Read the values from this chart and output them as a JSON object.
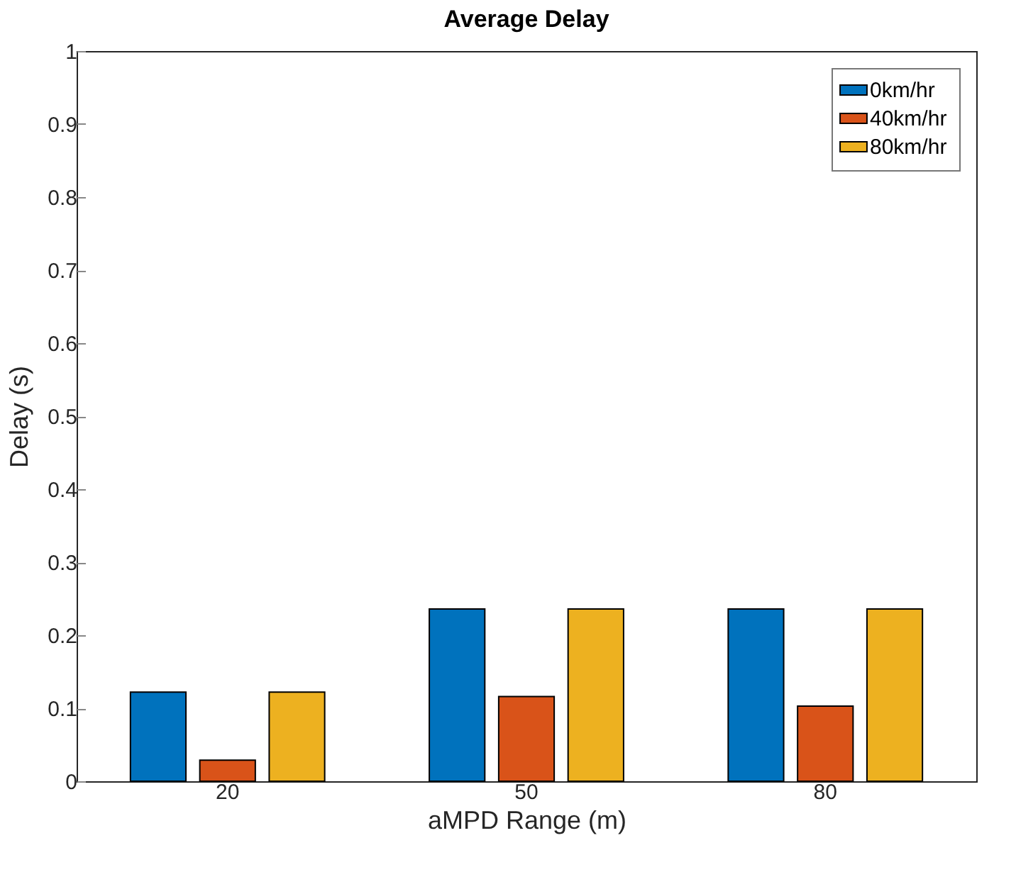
{
  "chart_data": {
    "type": "bar",
    "title": "Average Delay",
    "xlabel": "aMPD Range (m)",
    "ylabel": "Delay (s)",
    "categories": [
      "20",
      "50",
      "80"
    ],
    "series": [
      {
        "name": "0km/hr",
        "color": "#0072bd",
        "values": [
          0.122,
          0.236,
          0.236
        ]
      },
      {
        "name": "40km/hr",
        "color": "#d95319",
        "values": [
          0.029,
          0.116,
          0.103
        ]
      },
      {
        "name": "80km/hr",
        "color": "#edb120",
        "values": [
          0.122,
          0.236,
          0.236
        ]
      }
    ],
    "ylim": [
      0,
      1
    ],
    "yticks": [
      0,
      0.1,
      0.2,
      0.3,
      0.4,
      0.5,
      0.6,
      0.7,
      0.8,
      0.9,
      1
    ],
    "grid": false,
    "legend": "top right"
  }
}
